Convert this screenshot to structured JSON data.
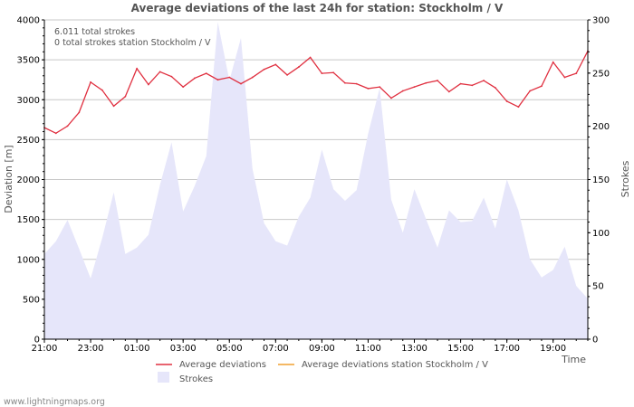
{
  "chart_data": {
    "type": "line",
    "title": "Average deviations of the last 24h for station: Stockholm / V",
    "xlabel": "Time",
    "ylabel": "Deviation  [m]",
    "y2label": "Strokes",
    "ylim": [
      0,
      4000
    ],
    "y2lim": [
      0,
      300
    ],
    "yticks": [
      0,
      500,
      1000,
      1500,
      2000,
      2500,
      3000,
      3500,
      4000
    ],
    "y2ticks": [
      0,
      50,
      100,
      150,
      200,
      250,
      300
    ],
    "x_range_hours": [
      0,
      23.5
    ],
    "xticks": [
      {
        "h": 0,
        "label": "21:00"
      },
      {
        "h": 2,
        "label": "23:00"
      },
      {
        "h": 4,
        "label": "01:00"
      },
      {
        "h": 6,
        "label": "03:00"
      },
      {
        "h": 8,
        "label": "05:00"
      },
      {
        "h": 10,
        "label": "07:00"
      },
      {
        "h": 12,
        "label": "09:00"
      },
      {
        "h": 14,
        "label": "11:00"
      },
      {
        "h": 16,
        "label": "13:00"
      },
      {
        "h": 18,
        "label": "15:00"
      },
      {
        "h": 20,
        "label": "17:00"
      },
      {
        "h": 22,
        "label": "19:00"
      }
    ],
    "annotations": [
      "6.011 total strokes",
      "0 total strokes station Stockholm / V"
    ],
    "series": [
      {
        "name": "Average deviations",
        "color": "#e03040",
        "x_step_hours": 0.5,
        "values": [
          2650,
          2580,
          2670,
          2840,
          3220,
          3120,
          2920,
          3040,
          3390,
          3190,
          3350,
          3290,
          3160,
          3270,
          3330,
          3250,
          3280,
          3200,
          3280,
          3380,
          3440,
          3310,
          3410,
          3530,
          3330,
          3340,
          3210,
          3200,
          3140,
          3160,
          3020,
          3110,
          3160,
          3210,
          3240,
          3100,
          3200,
          3180,
          3240,
          3150,
          2980,
          2910,
          3110,
          3170,
          3470,
          3280,
          3330,
          3610
        ]
      },
      {
        "name": "Average deviations station Stockholm / V",
        "color": "#f0a030",
        "values": []
      },
      {
        "name": "Strokes",
        "color": "#e6e6fa",
        "axis": "right",
        "x_step_hours": 0.5,
        "values": [
          80,
          92,
          112,
          85,
          57,
          95,
          138,
          80,
          86,
          98,
          145,
          185,
          120,
          144,
          172,
          298,
          243,
          283,
          160,
          109,
          92,
          88,
          115,
          133,
          178,
          141,
          130,
          140,
          193,
          236,
          131,
          100,
          141,
          113,
          86,
          121,
          110,
          111,
          133,
          104,
          150,
          121,
          75,
          58,
          65,
          87,
          50,
          38
        ]
      }
    ]
  },
  "footer": "www.lightningmaps.org"
}
